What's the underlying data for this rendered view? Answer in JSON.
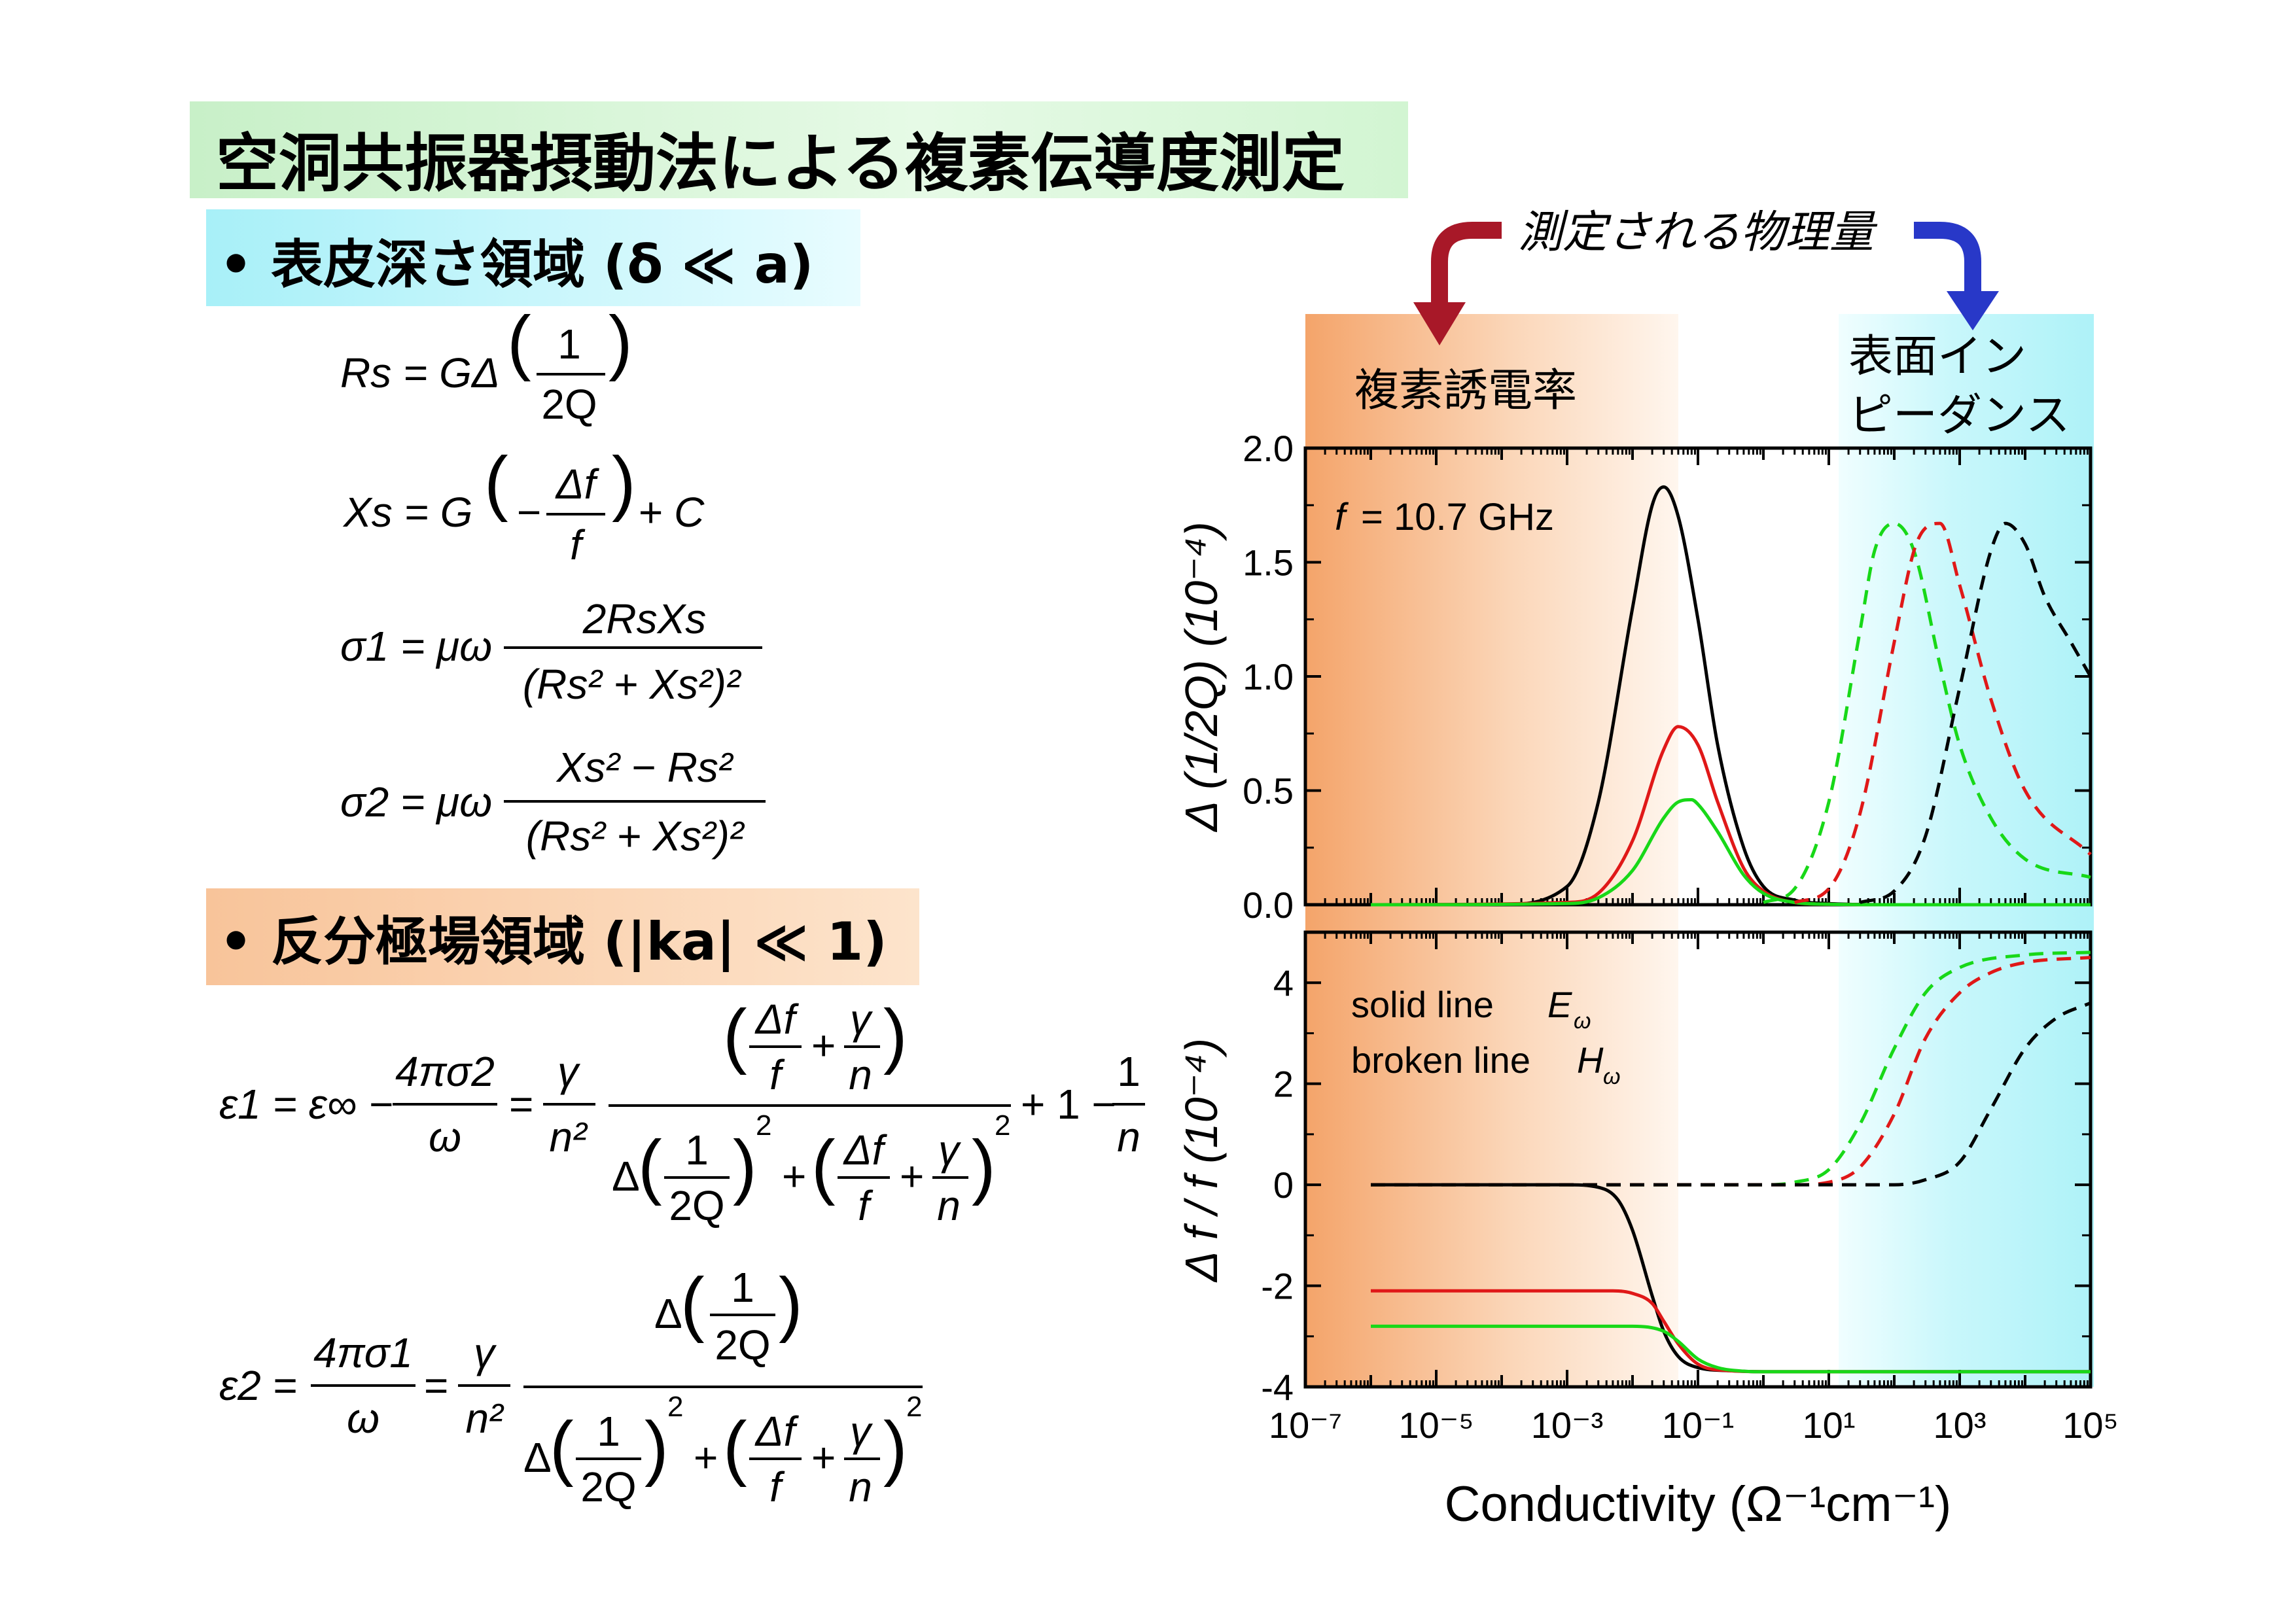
{
  "slide": {
    "title": "空洞共振器摂動法による複素伝導度測定",
    "section1": "• 表皮深さ領域 (δ ≪ a)",
    "section2": "• 反分極場領域 (|ka| ≪ 1)"
  },
  "equations": {
    "Rs": {
      "lhs": "Rs = GΔ",
      "num": "1",
      "den": "2Q"
    },
    "Xs": {
      "lhs": "Xs = G",
      "inner_num": "Δf",
      "inner_den": "f",
      "minus": "−",
      "plus_c": "+ C"
    },
    "sigma1": {
      "lhs": "σ1 = μω",
      "num": "2RsXs",
      "den": "(Rs² + Xs²)²"
    },
    "sigma2": {
      "lhs": "σ2 = μω",
      "num": "Xs² − Rs²",
      "den": "(Rs² + Xs²)²"
    },
    "eps1": {
      "lhs": "ε1 = ε∞ −",
      "frac1_num": "4πσ2",
      "frac1_den": "ω",
      "eq": "=",
      "frac2_num": "γ",
      "frac2_den": "n²",
      "tail": "+ 1 −",
      "frac3_num": "1",
      "frac3_den": "n"
    },
    "eps2": {
      "lhs": "ε2 =",
      "frac1_num": "4πσ1",
      "frac1_den": "ω",
      "eq": "=",
      "frac2_num": "γ",
      "frac2_den": "n²"
    },
    "parts": {
      "delta": "Δ",
      "one": "1",
      "twoQ": "2Q",
      "df": "Δf",
      "f": "f",
      "gamma": "γ",
      "n": "n",
      "plus": "+",
      "sq": "2"
    }
  },
  "annotations": {
    "measured": "測定される物理量",
    "left_region": "複素誘電率",
    "right_region_line1": "表面イン",
    "right_region_line2": "ピーダンス",
    "freq_prefix": "f",
    "freq_value": "= 10.7 GHz",
    "legend_solid": "solid line",
    "legend_solid_sym": "E",
    "legend_broken": "broken line",
    "legend_broken_sym": "H",
    "legend_sub": "ω"
  },
  "colors": {
    "orange": "#f4a46a",
    "cyan": "#aef2f8",
    "dark_red_arrow": "#a81828",
    "blue_arrow": "#2838c8",
    "black": "#000000",
    "red": "#e01818",
    "green": "#18d818"
  },
  "chart_data": [
    {
      "type": "line",
      "x_scale": "log",
      "xlim": [
        1e-07,
        100000.0
      ],
      "ylim": [
        0,
        2.0
      ],
      "ylabel": "Δ (1/2Q) (10⁻⁴)",
      "y_ticks": [
        "0.0",
        "0.5",
        "1.0",
        "1.5",
        "2.0"
      ],
      "annotation": "f = 10.7 GHz",
      "series": [
        {
          "color": "black",
          "style": "solid",
          "x": [
            1e-06,
            0.0001,
            0.001,
            0.003,
            0.01,
            0.02,
            0.03,
            0.05,
            0.1,
            0.2,
            0.5,
            1,
            3,
            10,
            100,
            100000.0
          ],
          "y": [
            0,
            0.001,
            0.08,
            0.45,
            1.3,
            1.75,
            1.83,
            1.7,
            1.25,
            0.7,
            0.25,
            0.08,
            0.02,
            0.005,
            0,
            0
          ]
        },
        {
          "color": "red",
          "style": "solid",
          "x": [
            1e-06,
            0.001,
            0.003,
            0.01,
            0.03,
            0.05,
            0.1,
            0.2,
            0.5,
            1,
            3,
            10,
            100,
            100000.0
          ],
          "y": [
            0,
            0.01,
            0.05,
            0.28,
            0.68,
            0.78,
            0.7,
            0.45,
            0.16,
            0.06,
            0.01,
            0.002,
            0,
            0
          ]
        },
        {
          "color": "green",
          "style": "solid",
          "x": [
            1e-06,
            0.001,
            0.003,
            0.01,
            0.03,
            0.05,
            0.08,
            0.1,
            0.2,
            0.5,
            1,
            3,
            10,
            100,
            100000.0
          ],
          "y": [
            0,
            0.005,
            0.03,
            0.15,
            0.38,
            0.45,
            0.46,
            0.44,
            0.32,
            0.13,
            0.05,
            0.01,
            0.002,
            0,
            0
          ]
        },
        {
          "color": "green",
          "style": "dashed",
          "x": [
            1,
            3,
            10,
            30,
            50,
            100,
            200,
            500,
            1000,
            3000,
            10000,
            100000
          ],
          "y": [
            0.01,
            0.07,
            0.45,
            1.2,
            1.55,
            1.67,
            1.55,
            1.05,
            0.7,
            0.38,
            0.2,
            0.12
          ]
        },
        {
          "color": "red",
          "style": "dashed",
          "x": [
            3,
            10,
            30,
            100,
            200,
            300,
            500,
            1000,
            3000,
            10000,
            100000
          ],
          "y": [
            0.01,
            0.07,
            0.4,
            1.15,
            1.55,
            1.65,
            1.67,
            1.4,
            0.9,
            0.5,
            0.22
          ]
        },
        {
          "color": "black",
          "style": "dashed",
          "x": [
            30,
            100,
            300,
            1000,
            3000,
            5000,
            10000,
            20000,
            50000,
            100000
          ],
          "y": [
            0.01,
            0.06,
            0.3,
            0.95,
            1.55,
            1.67,
            1.58,
            1.35,
            1.15,
            1.0
          ]
        }
      ]
    },
    {
      "type": "line",
      "x_scale": "log",
      "xlim": [
        1e-07,
        100000.0
      ],
      "ylim": [
        -4,
        5
      ],
      "xlabel": "Conductivity (Ω⁻¹cm⁻¹)",
      "ylabel": "Δ f / f (10⁻⁴)",
      "x_ticks": [
        "10⁻⁷",
        "10⁻⁵",
        "10⁻³",
        "10⁻¹",
        "10¹",
        "10³",
        "10⁵"
      ],
      "y_ticks": [
        "-4",
        "-2",
        "0",
        "2",
        "4"
      ],
      "legend": [
        "solid line Eω",
        "broken line Hω"
      ],
      "series": [
        {
          "color": "black",
          "style": "solid",
          "x": [
            1e-06,
            0.001,
            0.003,
            0.006,
            0.01,
            0.02,
            0.03,
            0.05,
            0.1,
            0.3,
            1,
            100000.0
          ],
          "y": [
            0,
            0,
            -0.05,
            -0.3,
            -0.9,
            -2.2,
            -2.9,
            -3.4,
            -3.62,
            -3.68,
            -3.7,
            -3.7
          ]
        },
        {
          "color": "red",
          "style": "solid",
          "x": [
            1e-06,
            0.005,
            0.01,
            0.02,
            0.03,
            0.05,
            0.1,
            0.3,
            1,
            100000.0
          ],
          "y": [
            -2.1,
            -2.1,
            -2.15,
            -2.35,
            -2.7,
            -3.15,
            -3.55,
            -3.68,
            -3.7,
            -3.7
          ]
        },
        {
          "color": "green",
          "style": "solid",
          "x": [
            1e-06,
            0.01,
            0.03,
            0.05,
            0.1,
            0.2,
            0.5,
            1,
            100000.0
          ],
          "y": [
            -2.8,
            -2.8,
            -2.9,
            -3.1,
            -3.45,
            -3.62,
            -3.69,
            -3.7,
            -3.7
          ]
        },
        {
          "color": "green",
          "style": "dashed",
          "x": [
            1e-06,
            1,
            3,
            10,
            30,
            100,
            300,
            1000,
            10000,
            100000
          ],
          "y": [
            0,
            0,
            0.05,
            0.3,
            1.2,
            2.7,
            3.8,
            4.3,
            4.55,
            4.6
          ]
        },
        {
          "color": "red",
          "style": "dashed",
          "x": [
            1e-06,
            3,
            10,
            30,
            100,
            300,
            1000,
            3000,
            10000,
            100000
          ],
          "y": [
            0,
            0,
            0.05,
            0.35,
            1.4,
            2.9,
            3.8,
            4.2,
            4.4,
            4.5
          ]
        },
        {
          "color": "black",
          "style": "dashed",
          "x": [
            1e-06,
            100,
            300,
            1000,
            3000,
            10000,
            30000,
            100000
          ],
          "y": [
            0,
            0,
            0.1,
            0.45,
            1.5,
            2.7,
            3.3,
            3.6
          ]
        }
      ]
    }
  ]
}
